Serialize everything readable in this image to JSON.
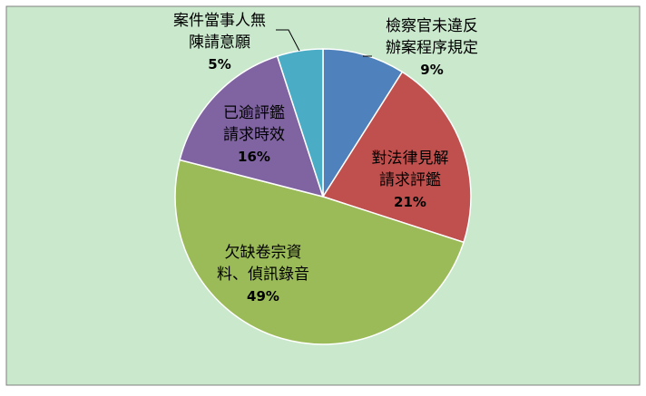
{
  "chart_data": {
    "type": "pie",
    "title": "",
    "legend": "none",
    "start_angle_deg": 0,
    "direction": "clockwise",
    "slices": [
      {
        "label_lines": [
          "檢察官未違反",
          "辦案程序規定"
        ],
        "percent_label": "9%",
        "value": 9,
        "color": "#4f81bd"
      },
      {
        "label_lines": [
          "對法律見解",
          "請求評鑑"
        ],
        "percent_label": "21%",
        "value": 21,
        "color": "#c0504d"
      },
      {
        "label_lines": [
          "欠缺卷宗資",
          "料、偵訊錄音"
        ],
        "percent_label": "49%",
        "value": 49,
        "color": "#9bbb59"
      },
      {
        "label_lines": [
          "已逾評鑑",
          "請求時效"
        ],
        "percent_label": "16%",
        "value": 16,
        "color": "#8064a2"
      },
      {
        "label_lines": [
          "案件當事人無",
          "陳請意願"
        ],
        "percent_label": "5%",
        "value": 5,
        "color": "#4bacc6"
      }
    ],
    "colors": {
      "plot_background": "#c9e8cc",
      "frame_border": "#7f7f7f",
      "slice_border": "#ffffff",
      "text": "#000000"
    }
  }
}
